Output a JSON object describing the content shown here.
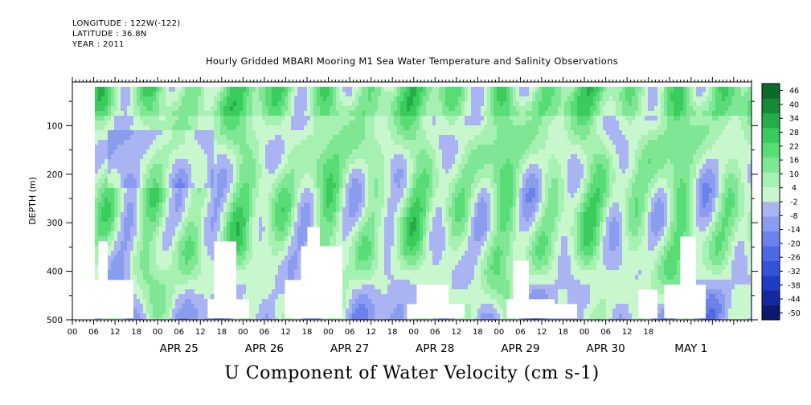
{
  "header": {
    "longitude": "LONGITUDE : 122W(-122)",
    "latitude": "LATITUDE : 36.8N",
    "year": "YEAR : 2011"
  },
  "chart_data": {
    "type": "heatmap",
    "title": "Hourly Gridded MBARI Mooring M1 Sea Water Temperature and Salinity Observations",
    "bottom_title": "U Component of Water Velocity (cm s-1)",
    "ylabel": "DEPTH (m)",
    "ylim": [
      500,
      10
    ],
    "y_ticks": [
      100,
      200,
      300,
      400,
      500
    ],
    "x_start": "2011-04-24 00:00",
    "x_end": "2011-05-01 23:00",
    "data_start": "2011-04-24 06:00",
    "x_hour_ticks": [
      "00",
      "06",
      "12",
      "18",
      "00",
      "06",
      "12",
      "18",
      "00",
      "06",
      "12",
      "18",
      "00",
      "06",
      "12",
      "18",
      "00",
      "06",
      "12",
      "18",
      "00",
      "06",
      "12",
      "18",
      "00",
      "06",
      "12",
      "18"
    ],
    "x_day_labels": [
      "APR 25",
      "APR 26",
      "APR 27",
      "APR 28",
      "APR 29",
      "APR 30",
      "MAY  1"
    ],
    "colorbar": {
      "levels": [
        -50,
        -44,
        -38,
        -32,
        -26,
        -20,
        -14,
        -8,
        -2,
        4,
        10,
        16,
        22,
        28,
        34,
        40,
        46
      ],
      "tick_labels": [
        "46",
        "40",
        "34",
        "28",
        "22",
        "16",
        "10",
        "4",
        "-2",
        "-8",
        "-14",
        "-20",
        "-26",
        "-32",
        "-38",
        "-44",
        "-50"
      ]
    },
    "colors": {
      "strong_negative": "#0d1a8a",
      "negative": "#7f86e8",
      "weak_negative": "#b2b5f0",
      "neutral_positive": "#bff5c6",
      "positive": "#5fe07c",
      "strong_positive": "#0c5a26"
    }
  }
}
